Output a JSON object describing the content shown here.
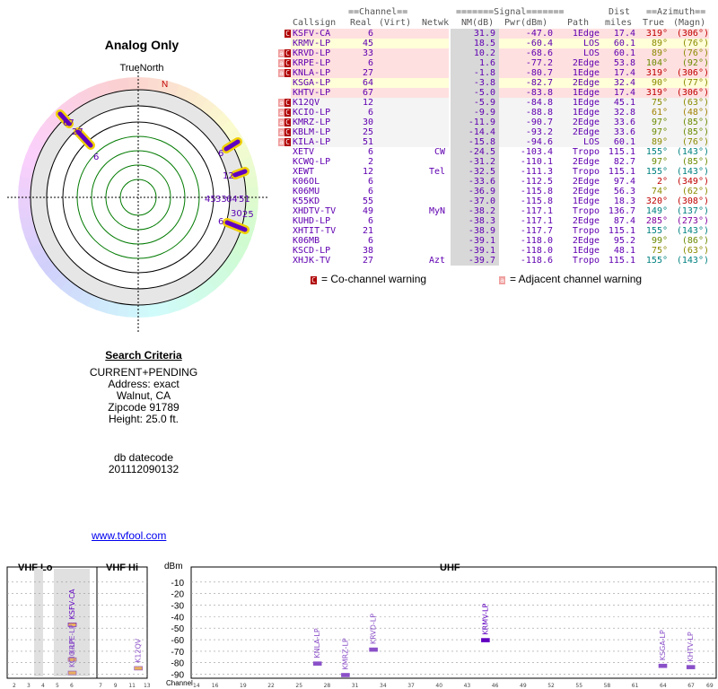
{
  "title": "Analog Only",
  "true_north": "TrueNorth",
  "compass_n": "N",
  "radar_labels": {
    "left_group": [
      "67",
      "27",
      "6"
    ],
    "right_upper": [
      "6",
      "12"
    ],
    "right_lower": [
      "6",
      "25"
    ],
    "center_cluster": [
      "45",
      "33",
      "64",
      "51",
      "30"
    ]
  },
  "search": {
    "heading": "Search Criteria",
    "lines": [
      "CURRENT+PENDING",
      "Address: exact",
      "Walnut, CA",
      "Zipcode 91789",
      "Height: 25.0 ft."
    ],
    "db_label": "db datecode",
    "db_value": "201112090132"
  },
  "link": "www.tvfool.com",
  "table": {
    "group_headers": {
      "channel": "==Channel==",
      "signal": "=======Signal=======",
      "dist": "Dist",
      "azimuth": "==Azimuth=="
    },
    "columns": {
      "callsign": "Callsign",
      "real": "Real",
      "virt": "(Virt)",
      "netwk": "Netwk",
      "nm": "NM(dB)",
      "pwr": "Pwr(dBm)",
      "path": "Path",
      "miles": "miles",
      "true": "True",
      "magn": "(Magn)"
    },
    "rows": [
      {
        "badges": [
          "C"
        ],
        "callsign": "KSFV-CA",
        "real": "6",
        "netwk": "",
        "nm": "31.9",
        "pwr": "-47.0",
        "path": "1Edge",
        "miles": "17.4",
        "az_true": "319°",
        "az_magn": "(306°)",
        "az_color": "#c00000",
        "bg": "#ffe0e0"
      },
      {
        "badges": [],
        "callsign": "KRMV-LP",
        "real": "45",
        "netwk": "",
        "nm": "18.5",
        "pwr": "-60.4",
        "path": "LOS",
        "miles": "60.1",
        "az_true": "89°",
        "az_magn": "(76°)",
        "az_color": "#8a8a00",
        "bg": "#ffffd8"
      },
      {
        "badges": [
          "a",
          "C"
        ],
        "callsign": "KRVD-LP",
        "real": "33",
        "netwk": "",
        "nm": "10.2",
        "pwr": "-68.6",
        "path": "LOS",
        "miles": "60.1",
        "az_true": "89°",
        "az_magn": "(76°)",
        "az_color": "#8a8a00",
        "bg": "#ffe0e0"
      },
      {
        "badges": [
          "a",
          "C"
        ],
        "callsign": "KRPE-LP",
        "real": "6",
        "netwk": "",
        "nm": "1.6",
        "pwr": "-77.2",
        "path": "2Edge",
        "miles": "53.8",
        "az_true": "104°",
        "az_magn": "(92°)",
        "az_color": "#6a8a00",
        "bg": "#ffe0e0"
      },
      {
        "badges": [
          "a",
          "C"
        ],
        "callsign": "KNLA-LP",
        "real": "27",
        "netwk": "",
        "nm": "-1.8",
        "pwr": "-80.7",
        "path": "1Edge",
        "miles": "17.4",
        "az_true": "319°",
        "az_magn": "(306°)",
        "az_color": "#c00000",
        "bg": "#ffe0e0"
      },
      {
        "badges": [],
        "callsign": "KSGA-LP",
        "real": "64",
        "netwk": "",
        "nm": "-3.8",
        "pwr": "-82.7",
        "path": "2Edge",
        "miles": "32.4",
        "az_true": "90°",
        "az_magn": "(77°)",
        "az_color": "#8a8a00",
        "bg": "#ffffd8"
      },
      {
        "badges": [],
        "callsign": "KHTV-LP",
        "real": "67",
        "netwk": "",
        "nm": "-5.0",
        "pwr": "-83.8",
        "path": "1Edge",
        "miles": "17.4",
        "az_true": "319°",
        "az_magn": "(306°)",
        "az_color": "#c00000",
        "bg": "#ffe0e0"
      },
      {
        "badges": [
          "a",
          "C"
        ],
        "callsign": "K12QV",
        "real": "12",
        "netwk": "",
        "nm": "-5.9",
        "pwr": "-84.8",
        "path": "1Edge",
        "miles": "45.1",
        "az_true": "75°",
        "az_magn": "(63°)",
        "az_color": "#8a8a00",
        "bg": "#f4f4f4"
      },
      {
        "badges": [
          "a",
          "C"
        ],
        "callsign": "KCIO-LP",
        "real": "6",
        "netwk": "",
        "nm": "-9.9",
        "pwr": "-88.8",
        "path": "1Edge",
        "miles": "32.8",
        "az_true": "61°",
        "az_magn": "(48°)",
        "az_color": "#a08000",
        "bg": "#f4f4f4"
      },
      {
        "badges": [
          "a",
          "C"
        ],
        "callsign": "KMRZ-LP",
        "real": "30",
        "netwk": "",
        "nm": "-11.9",
        "pwr": "-90.7",
        "path": "2Edge",
        "miles": "33.6",
        "az_true": "97°",
        "az_magn": "(85°)",
        "az_color": "#6a8a00",
        "bg": "#f4f4f4"
      },
      {
        "badges": [
          "a",
          "C"
        ],
        "callsign": "KBLM-LP",
        "real": "25",
        "netwk": "",
        "nm": "-14.4",
        "pwr": "-93.2",
        "path": "2Edge",
        "miles": "33.6",
        "az_true": "97°",
        "az_magn": "(85°)",
        "az_color": "#6a8a00",
        "bg": "#f4f4f4"
      },
      {
        "badges": [
          "a",
          "C"
        ],
        "callsign": "KILA-LP",
        "real": "51",
        "netwk": "",
        "nm": "-15.8",
        "pwr": "-94.6",
        "path": "LOS",
        "miles": "60.1",
        "az_true": "89°",
        "az_magn": "(76°)",
        "az_color": "#8a8a00",
        "bg": "#f4f4f4"
      },
      {
        "badges": [],
        "callsign": "XETV",
        "real": "6",
        "netwk": "CW",
        "nm": "-24.5",
        "pwr": "-103.4",
        "path": "Tropo",
        "miles": "115.1",
        "az_true": "155°",
        "az_magn": "(143°)",
        "az_color": "#008080",
        "bg": "#ffffff"
      },
      {
        "badges": [],
        "callsign": "KCWQ-LP",
        "real": "2",
        "netwk": "",
        "nm": "-31.2",
        "pwr": "-110.1",
        "path": "2Edge",
        "miles": "82.7",
        "az_true": "97°",
        "az_magn": "(85°)",
        "az_color": "#6a8a00",
        "bg": "#ffffff"
      },
      {
        "badges": [],
        "callsign": "XEWT",
        "real": "12",
        "netwk": "Tel",
        "nm": "-32.5",
        "pwr": "-111.3",
        "path": "Tropo",
        "miles": "115.1",
        "az_true": "155°",
        "az_magn": "(143°)",
        "az_color": "#008080",
        "bg": "#ffffff"
      },
      {
        "badges": [],
        "callsign": "K06OL",
        "real": "6",
        "netwk": "",
        "nm": "-33.6",
        "pwr": "-112.5",
        "path": "2Edge",
        "miles": "97.4",
        "az_true": "2°",
        "az_magn": "(349°)",
        "az_color": "#c00000",
        "bg": "#ffffff"
      },
      {
        "badges": [],
        "callsign": "K06MU",
        "real": "6",
        "netwk": "",
        "nm": "-36.9",
        "pwr": "-115.8",
        "path": "2Edge",
        "miles": "56.3",
        "az_true": "74°",
        "az_magn": "(62°)",
        "az_color": "#8a8a00",
        "bg": "#ffffff"
      },
      {
        "badges": [],
        "callsign": "K55KD",
        "real": "55",
        "netwk": "",
        "nm": "-37.0",
        "pwr": "-115.8",
        "path": "1Edge",
        "miles": "18.3",
        "az_true": "320°",
        "az_magn": "(308°)",
        "az_color": "#c00000",
        "bg": "#ffffff"
      },
      {
        "badges": [],
        "callsign": "XHDTV-TV",
        "real": "49",
        "netwk": "MyN",
        "nm": "-38.2",
        "pwr": "-117.1",
        "path": "Tropo",
        "miles": "136.7",
        "az_true": "149°",
        "az_magn": "(137°)",
        "az_color": "#008080",
        "bg": "#ffffff"
      },
      {
        "badges": [],
        "callsign": "KUHD-LP",
        "real": "6",
        "netwk": "",
        "nm": "-38.3",
        "pwr": "-117.1",
        "path": "2Edge",
        "miles": "87.4",
        "az_true": "285°",
        "az_magn": "(273°)",
        "az_color": "#8000a0",
        "bg": "#ffffff"
      },
      {
        "badges": [],
        "callsign": "XHTIT-TV",
        "real": "21",
        "netwk": "",
        "nm": "-38.9",
        "pwr": "-117.7",
        "path": "Tropo",
        "miles": "115.1",
        "az_true": "155°",
        "az_magn": "(143°)",
        "az_color": "#008080",
        "bg": "#ffffff"
      },
      {
        "badges": [],
        "callsign": "K06MB",
        "real": "6",
        "netwk": "",
        "nm": "-39.1",
        "pwr": "-118.0",
        "path": "2Edge",
        "miles": "95.2",
        "az_true": "99°",
        "az_magn": "(86°)",
        "az_color": "#6a8a00",
        "bg": "#ffffff"
      },
      {
        "badges": [],
        "callsign": "KSCD-LP",
        "real": "38",
        "netwk": "",
        "nm": "-39.1",
        "pwr": "-118.0",
        "path": "1Edge",
        "miles": "48.1",
        "az_true": "75°",
        "az_magn": "(63°)",
        "az_color": "#8a8a00",
        "bg": "#ffffff"
      },
      {
        "badges": [],
        "callsign": "XHJK-TV",
        "real": "27",
        "netwk": "Azt",
        "nm": "-39.7",
        "pwr": "-118.6",
        "path": "Tropo",
        "miles": "115.1",
        "az_true": "155°",
        "az_magn": "(143°)",
        "az_color": "#008080",
        "bg": "#ffffff"
      }
    ],
    "legend": {
      "co_badge": "C",
      "co_text": "= Co-channel warning",
      "adj_badge": "a",
      "adj_text": "= Adjacent channel warning"
    }
  },
  "spectrum": {
    "bands": {
      "vhf_lo": "VHF Lo",
      "vhf_hi": "VHF Hi",
      "uhf": "UHF"
    },
    "dbm_label": "dBm",
    "channel_label": "Channel",
    "y_ticks": [
      "-10",
      "-20",
      "-30",
      "-40",
      "-50",
      "-60",
      "-70",
      "-80",
      "-90"
    ],
    "vhf_lo_ticks": [
      "2",
      "3",
      "4",
      "5",
      "6"
    ],
    "vhf_hi_ticks": [
      "7",
      "9",
      "11",
      "13"
    ],
    "uhf_ticks": [
      "14",
      "16",
      "19",
      "22",
      "25",
      "28",
      "31",
      "34",
      "37",
      "40",
      "43",
      "46",
      "49",
      "52",
      "55",
      "58",
      "61",
      "64",
      "67",
      "69"
    ],
    "stations": [
      {
        "label": "KSFV-CA",
        "band": "lo",
        "channel": 6,
        "dbm": -47.0
      },
      {
        "label": "KRPE-LP",
        "band": "lo",
        "channel": 6,
        "dbm": -77.2
      },
      {
        "label": "KCIO-LP",
        "band": "lo",
        "channel": 6,
        "dbm": -88.8
      },
      {
        "label": "K12QV",
        "band": "hi",
        "channel": 12,
        "dbm": -84.8
      },
      {
        "label": "KNLA-LP",
        "band": "uhf",
        "channel": 27,
        "dbm": -80.7
      },
      {
        "label": "KMRZ-LP",
        "band": "uhf",
        "channel": 30,
        "dbm": -90.7
      },
      {
        "label": "KRVD-LP",
        "band": "uhf",
        "channel": 33,
        "dbm": -68.6
      },
      {
        "label": "KRMV-LP",
        "band": "uhf",
        "channel": 45,
        "dbm": -60.4
      },
      {
        "label": "KSGA-LP",
        "band": "uhf",
        "channel": 64,
        "dbm": -82.7
      },
      {
        "label": "KHTV-LP",
        "band": "uhf",
        "channel": 67,
        "dbm": -83.8
      }
    ]
  }
}
